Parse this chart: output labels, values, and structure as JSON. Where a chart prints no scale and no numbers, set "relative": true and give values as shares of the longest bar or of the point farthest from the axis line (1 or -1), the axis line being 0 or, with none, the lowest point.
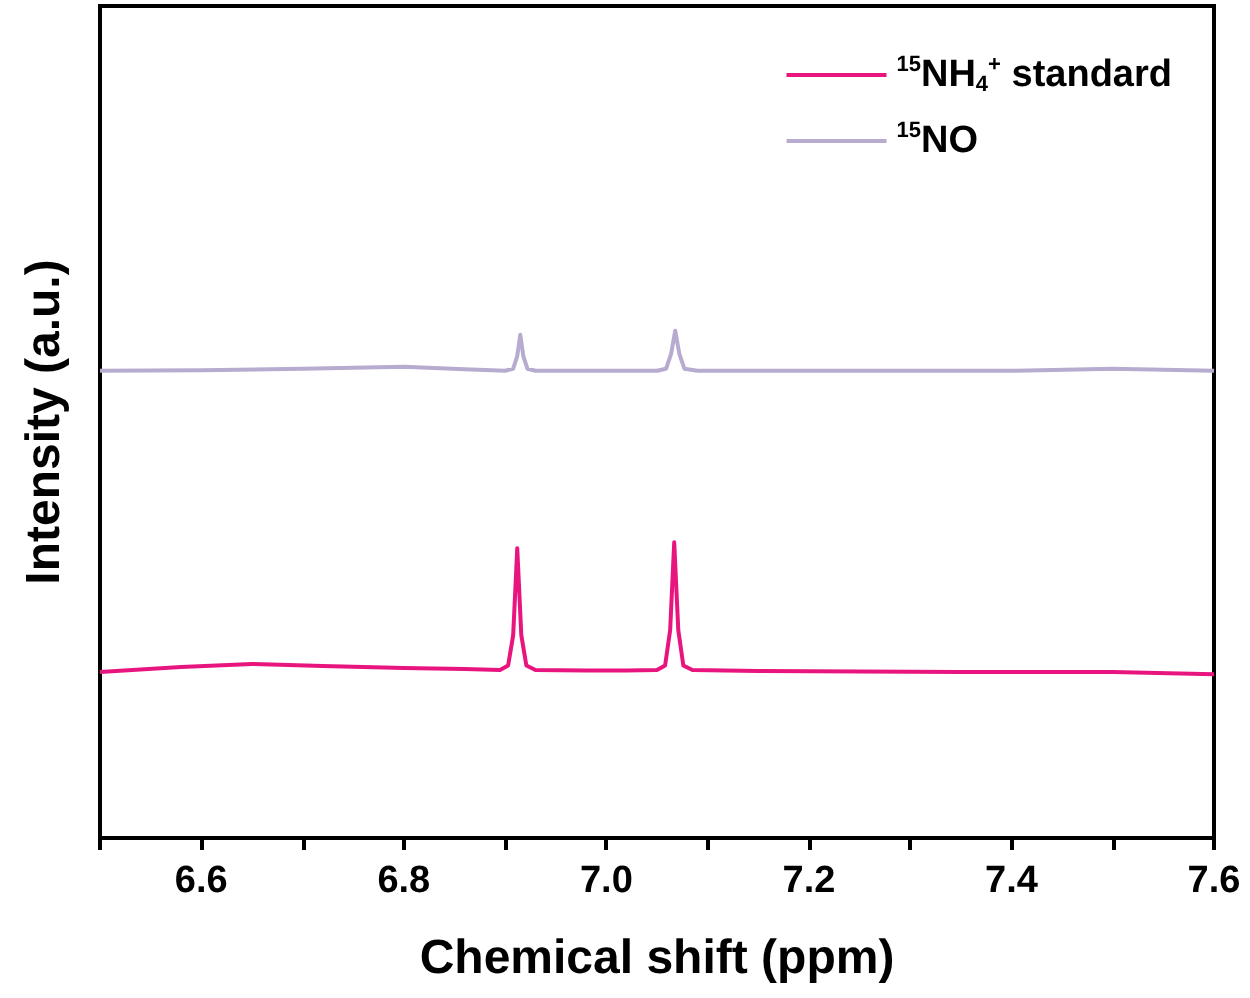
{
  "chart_data": {
    "type": "line",
    "relative": true,
    "xlabel": "Chemical shift (ppm)",
    "ylabel": "Intensity (a.u.)",
    "xlim": [
      6.5,
      7.6
    ],
    "xticks": [
      {
        "value": 6.5,
        "label": null
      },
      6.6,
      {
        "value": 6.7,
        "label": null
      },
      6.8,
      {
        "value": 6.9,
        "label": null
      },
      "7.0",
      {
        "value": 7.1,
        "label": null
      },
      7.2,
      {
        "value": 7.3,
        "label": null
      },
      7.4,
      {
        "value": 7.5,
        "label": null
      },
      7.6
    ],
    "legend": "top right",
    "grid": false,
    "marker": "none",
    "line_style": "solid",
    "tick_labels": "x",
    "series": [
      {
        "name": "$^{15}$NH$_{4}$$^{+}$ standard",
        "color": "#e8157f",
        "x": [
          6.5,
          6.58,
          6.65,
          6.72,
          6.8,
          6.86,
          6.895,
          6.903,
          6.908,
          6.912,
          6.916,
          6.921,
          6.93,
          6.98,
          7.02,
          7.05,
          7.058,
          7.063,
          7.067,
          7.071,
          7.076,
          7.085,
          7.15,
          7.25,
          7.35,
          7.45,
          7.5,
          7.6
        ],
        "values": [
          0.327,
          0.337,
          0.343,
          0.339,
          0.335,
          0.333,
          0.331,
          0.34,
          0.4,
          0.571,
          0.4,
          0.34,
          0.331,
          0.33,
          0.33,
          0.331,
          0.34,
          0.41,
          0.583,
          0.41,
          0.34,
          0.331,
          0.329,
          0.328,
          0.327,
          0.327,
          0.327,
          0.323
        ]
      },
      {
        "name": "$^{15}$NO",
        "color": "#b7abd0",
        "x": [
          6.5,
          6.6,
          6.7,
          6.8,
          6.86,
          6.9,
          6.908,
          6.912,
          6.915,
          6.918,
          6.922,
          6.93,
          7.0,
          7.05,
          7.059,
          7.064,
          7.068,
          7.072,
          7.077,
          7.09,
          7.2,
          7.3,
          7.4,
          7.5,
          7.6
        ],
        "values": [
          0.921,
          0.922,
          0.925,
          0.929,
          0.924,
          0.921,
          0.925,
          0.95,
          0.992,
          0.95,
          0.925,
          0.921,
          0.921,
          0.921,
          0.925,
          0.955,
          1.0,
          0.955,
          0.925,
          0.921,
          0.921,
          0.921,
          0.921,
          0.925,
          0.921
        ]
      }
    ]
  }
}
